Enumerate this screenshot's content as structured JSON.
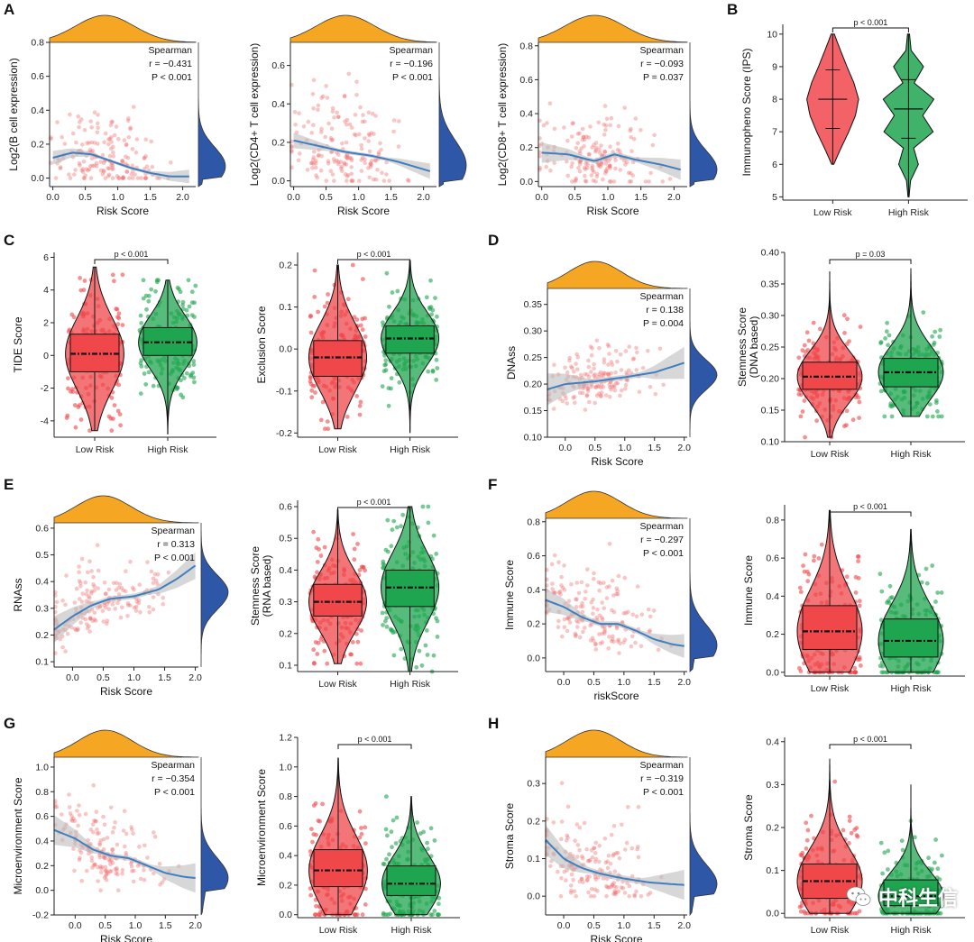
{
  "colors": {
    "low_risk": "#f0474b",
    "high_risk": "#1fa54f",
    "points": "#f06a6a",
    "smooth_line": "#3f7fbf",
    "confidence_band": "#bdbdbd",
    "top_density": "#f5a623",
    "right_density": "#2f57a8"
  },
  "panel_letters": [
    "A",
    "B",
    "C",
    "D",
    "E",
    "F",
    "G",
    "H"
  ],
  "watermark": {
    "icon": "wechat-icon",
    "text": "中科生信"
  },
  "chart_data": [
    {
      "id": "A1",
      "type": "scatter",
      "panel": "A",
      "xlabel": "Risk Score",
      "ylabel": "Log2(B cell expression)",
      "xlim": [
        -0.05,
        2.2
      ],
      "ylim": [
        -0.05,
        0.8
      ],
      "xticks": [
        "0.0",
        "0.5",
        "1.0",
        "1.5",
        "2.0"
      ],
      "xtick_values": [
        0,
        0.5,
        1,
        1.5,
        2
      ],
      "yticks": [
        "0.0",
        "0.2",
        "0.4",
        "0.6",
        "0.8"
      ],
      "ytick_values": [
        0,
        0.2,
        0.4,
        0.6,
        0.8
      ],
      "annotation": [
        "Spearman",
        "r = −0.431",
        "P < 0.001"
      ],
      "smooth": {
        "x": [
          0,
          0.3,
          0.6,
          0.9,
          1.2,
          1.5,
          1.8,
          2.1
        ],
        "y": [
          0.12,
          0.15,
          0.14,
          0.1,
          0.06,
          0.03,
          0.01,
          0.01
        ]
      },
      "band": [
        0.01,
        0.04
      ],
      "points": {
        "n": 170,
        "x_center": 0.8,
        "x_spread": 0.45,
        "y_scale": 0.14,
        "y_max": 0.72
      },
      "marginals": true
    },
    {
      "id": "A2",
      "type": "scatter",
      "panel": "A",
      "xlabel": "Risk Score",
      "ylabel": "Log2(CD4+ T cell expression)",
      "xlim": [
        -0.05,
        2.2
      ],
      "ylim": [
        -0.03,
        0.72
      ],
      "xticks": [
        "0.0",
        "0.5",
        "1.0",
        "1.5",
        "2.0"
      ],
      "xtick_values": [
        0,
        0.5,
        1,
        1.5,
        2
      ],
      "yticks": [
        "0.0",
        "0.2",
        "0.4",
        "0.6"
      ],
      "ytick_values": [
        0,
        0.2,
        0.4,
        0.6
      ],
      "annotation": [
        "Spearman",
        "r = −0.196",
        "P < 0.001"
      ],
      "smooth": {
        "x": [
          0,
          0.4,
          0.8,
          1.2,
          1.6,
          2.1
        ],
        "y": [
          0.21,
          0.18,
          0.15,
          0.13,
          0.1,
          0.05
        ]
      },
      "band": [
        0.01,
        0.04
      ],
      "points": {
        "n": 170,
        "x_center": 0.8,
        "x_spread": 0.45,
        "y_scale": 0.16,
        "y_max": 0.65
      },
      "marginals": true
    },
    {
      "id": "A3",
      "type": "scatter",
      "panel": "A",
      "xlabel": "Risk Score",
      "ylabel": "Log2(CD8+ T cell expression)",
      "xlim": [
        -0.05,
        2.2
      ],
      "ylim": [
        -0.03,
        0.82
      ],
      "xticks": [
        "0.0",
        "0.5",
        "1.0",
        "1.5",
        "2.0"
      ],
      "xtick_values": [
        0,
        0.5,
        1,
        1.5,
        2
      ],
      "yticks": [
        "0.0",
        "0.2",
        "0.4",
        "0.6",
        "0.8"
      ],
      "ytick_values": [
        0,
        0.2,
        0.4,
        0.6,
        0.8
      ],
      "annotation": [
        "Spearman",
        "r = −0.093",
        "P = 0.037"
      ],
      "smooth": {
        "x": [
          0,
          0.4,
          0.8,
          1.1,
          1.4,
          1.8,
          2.1
        ],
        "y": [
          0.17,
          0.16,
          0.12,
          0.16,
          0.13,
          0.1,
          0.07
        ]
      },
      "band": [
        0.015,
        0.06
      ],
      "points": {
        "n": 170,
        "x_center": 0.8,
        "x_spread": 0.45,
        "y_scale": 0.14,
        "y_max": 0.75
      },
      "marginals": true
    },
    {
      "id": "B",
      "type": "violin",
      "panel": "B",
      "ylabel": "Immunopheno Score (IPS)",
      "categories": [
        "Low Risk",
        "High Risk"
      ],
      "ylim": [
        4.9,
        10.3
      ],
      "yticks": [
        "5",
        "6",
        "7",
        "8",
        "9",
        "10"
      ],
      "ytick_values": [
        5,
        6,
        7,
        8,
        9,
        10
      ],
      "p_value": "p < 0.001",
      "violins": [
        {
          "group": "Low Risk",
          "range": [
            6,
            10
          ],
          "mean": 8,
          "sd": [
            7.1,
            8.9
          ],
          "profile_y": [
            6,
            6.5,
            7,
            7.5,
            8,
            8.5,
            9,
            9.5,
            10
          ],
          "profile_w": [
            0.04,
            0.32,
            0.62,
            0.88,
            1.0,
            0.82,
            0.55,
            0.3,
            0.06
          ]
        },
        {
          "group": "High Risk",
          "range": [
            5,
            10
          ],
          "mean": 7.7,
          "sd": [
            6.8,
            8.6
          ],
          "profile_y": [
            5,
            5.5,
            6,
            6.5,
            7,
            7.5,
            8,
            8.5,
            9,
            9.5,
            10
          ],
          "profile_w": [
            0.02,
            0.08,
            0.38,
            0.2,
            0.95,
            0.55,
            0.98,
            0.22,
            0.58,
            0.1,
            0.04
          ]
        }
      ]
    },
    {
      "id": "C1",
      "type": "box",
      "panel": "C",
      "ylabel": "TIDE Score",
      "categories": [
        "Low Risk",
        "High Risk"
      ],
      "ylim": [
        -5,
        6.3
      ],
      "yticks": [
        "-4",
        "-2",
        "0",
        "2",
        "4",
        "6"
      ],
      "ytick_values": [
        -4,
        -2,
        0,
        2,
        4,
        6
      ],
      "p_value": "p < 0.001",
      "boxes": [
        {
          "group": "Low Risk",
          "min": -4.6,
          "q1": -1.0,
          "median": 0.1,
          "q3": 1.3,
          "max": 5.4
        },
        {
          "group": "High Risk",
          "min": -4.8,
          "q1": 0.0,
          "median": 0.8,
          "q3": 1.7,
          "max": 4.6
        }
      ]
    },
    {
      "id": "C2",
      "type": "box",
      "panel": "C",
      "ylabel": "Exclusion Score",
      "categories": [
        "Low Risk",
        "High Risk"
      ],
      "ylim": [
        -0.21,
        0.23
      ],
      "yticks": [
        "-0.2",
        "-0.1",
        "0.0",
        "0.1",
        "0.2"
      ],
      "ytick_values": [
        -0.2,
        -0.1,
        0,
        0.1,
        0.2
      ],
      "p_value": "p < 0.001",
      "boxes": [
        {
          "group": "Low Risk",
          "min": -0.19,
          "q1": -0.065,
          "median": -0.02,
          "q3": 0.02,
          "max": 0.2
        },
        {
          "group": "High Risk",
          "min": -0.2,
          "q1": -0.01,
          "median": 0.025,
          "q3": 0.055,
          "max": 0.21
        }
      ]
    },
    {
      "id": "D1",
      "type": "scatter",
      "panel": "D",
      "xlabel": "Risk Score",
      "ylabel": "DNAss",
      "xlim": [
        -0.3,
        2.05
      ],
      "ylim": [
        0.1,
        0.38
      ],
      "xticks": [
        "0.0",
        "0.5",
        "1.0",
        "1.5",
        "2.0"
      ],
      "xtick_values": [
        0,
        0.5,
        1,
        1.5,
        2
      ],
      "yticks": [
        "0.10",
        "0.15",
        "0.20",
        "0.25",
        "0.30",
        "0.35"
      ],
      "ytick_values": [
        0.1,
        0.15,
        0.2,
        0.25,
        0.3,
        0.35
      ],
      "annotation": [
        "Spearman",
        "r = 0.138",
        "P = 0.004"
      ],
      "smooth": {
        "x": [
          -0.3,
          0,
          0.5,
          1.0,
          1.5,
          2.0
        ],
        "y": [
          0.19,
          0.2,
          0.205,
          0.213,
          0.222,
          0.24
        ]
      },
      "band": [
        0.005,
        0.03
      ],
      "points": {
        "n": 170,
        "x_center": 0.5,
        "x_spread": 0.45,
        "y_scale": 0.035,
        "y_base": 0.2,
        "y_max": 0.37
      },
      "marginals": true
    },
    {
      "id": "D2",
      "type": "box",
      "panel": "D",
      "ylabel": "Stemness Score (DNA based)",
      "categories": [
        "Low Risk",
        "High Risk"
      ],
      "ylim": [
        0.1,
        0.4
      ],
      "yticks": [
        "0.10",
        "0.15",
        "0.20",
        "0.25",
        "0.30",
        "0.35",
        "0.40"
      ],
      "ytick_values": [
        0.1,
        0.15,
        0.2,
        0.25,
        0.3,
        0.35,
        0.4
      ],
      "p_value": "p = 0.03",
      "boxes": [
        {
          "group": "Low Risk",
          "min": 0.107,
          "q1": 0.183,
          "median": 0.203,
          "q3": 0.226,
          "max": 0.37
        },
        {
          "group": "High Risk",
          "min": 0.14,
          "q1": 0.187,
          "median": 0.21,
          "q3": 0.232,
          "max": 0.375
        }
      ]
    },
    {
      "id": "E1",
      "type": "scatter",
      "panel": "E",
      "xlabel": "Risk Score",
      "ylabel": "RNAss",
      "xlim": [
        -0.3,
        2.05
      ],
      "ylim": [
        0.08,
        0.62
      ],
      "xticks": [
        "0.0",
        "0.5",
        "1.0",
        "1.5",
        "2.0"
      ],
      "xtick_values": [
        0,
        0.5,
        1,
        1.5,
        2
      ],
      "yticks": [
        "0.1",
        "0.2",
        "0.3",
        "0.4",
        "0.5",
        "0.6"
      ],
      "ytick_values": [
        0.1,
        0.2,
        0.3,
        0.4,
        0.5,
        0.6
      ],
      "annotation": [
        "Spearman",
        "r = 0.313",
        "P < 0.001"
      ],
      "smooth": {
        "x": [
          -0.3,
          0,
          0.3,
          0.6,
          1.0,
          1.4,
          1.7,
          2.0
        ],
        "y": [
          0.22,
          0.27,
          0.31,
          0.335,
          0.345,
          0.37,
          0.41,
          0.46
        ]
      },
      "band": [
        0.01,
        0.05
      ],
      "points": {
        "n": 170,
        "x_center": 0.5,
        "x_spread": 0.45,
        "y_scale": 0.08,
        "y_base": 0.32,
        "y_max": 0.6
      },
      "marginals": true
    },
    {
      "id": "E2",
      "type": "box",
      "panel": "E",
      "ylabel": "Stemness Score (RNA based)",
      "categories": [
        "Low Risk",
        "High Risk"
      ],
      "ylim": [
        0.08,
        0.62
      ],
      "yticks": [
        "0.1",
        "0.2",
        "0.3",
        "0.4",
        "0.5",
        "0.6"
      ],
      "ytick_values": [
        0.1,
        0.2,
        0.3,
        0.4,
        0.5,
        0.6
      ],
      "p_value": "p < 0.001",
      "boxes": [
        {
          "group": "Low Risk",
          "min": 0.105,
          "q1": 0.255,
          "median": 0.3,
          "q3": 0.355,
          "max": 0.59
        },
        {
          "group": "High Risk",
          "min": 0.08,
          "q1": 0.285,
          "median": 0.345,
          "q3": 0.4,
          "max": 0.6
        }
      ]
    },
    {
      "id": "F1",
      "type": "scatter",
      "panel": "F",
      "xlabel": "riskScore",
      "ylabel": "Immune Score",
      "xlim": [
        -0.3,
        2.05
      ],
      "ylim": [
        -0.08,
        0.82
      ],
      "xticks": [
        "0.0",
        "0.5",
        "1.0",
        "1.5",
        "2.0"
      ],
      "xtick_values": [
        0,
        0.5,
        1,
        1.5,
        2
      ],
      "yticks": [
        "0.0",
        "0.2",
        "0.4",
        "0.6",
        "0.8"
      ],
      "ytick_values": [
        0,
        0.2,
        0.4,
        0.6,
        0.8
      ],
      "annotation": [
        "Spearman",
        "r = −0.297",
        "P < 0.001"
      ],
      "smooth": {
        "x": [
          -0.3,
          0,
          0.3,
          0.6,
          0.9,
          1.2,
          1.5,
          1.8,
          2.0
        ],
        "y": [
          0.34,
          0.3,
          0.24,
          0.2,
          0.2,
          0.16,
          0.11,
          0.08,
          0.07
        ]
      },
      "band": [
        0.015,
        0.07
      ],
      "points": {
        "n": 170,
        "x_center": 0.5,
        "x_spread": 0.45,
        "y_scale": 0.15,
        "y_max": 0.72
      },
      "marginals": true
    },
    {
      "id": "F2",
      "type": "box",
      "panel": "F",
      "ylabel": "Immune Score",
      "categories": [
        "Low Risk",
        "High Risk"
      ],
      "ylim": [
        -0.02,
        0.88
      ],
      "yticks": [
        "0.0",
        "0.2",
        "0.4",
        "0.6",
        "0.8"
      ],
      "ytick_values": [
        0,
        0.2,
        0.4,
        0.6,
        0.8
      ],
      "p_value": "p < 0.001",
      "boxes": [
        {
          "group": "Low Risk",
          "min": 0.0,
          "q1": 0.12,
          "median": 0.215,
          "q3": 0.35,
          "max": 0.85
        },
        {
          "group": "High Risk",
          "min": 0.0,
          "q1": 0.08,
          "median": 0.165,
          "q3": 0.28,
          "max": 0.75
        }
      ]
    },
    {
      "id": "G1",
      "type": "scatter",
      "panel": "G",
      "xlabel": "Risk Score",
      "ylabel": "Microenvironment Score",
      "xlim": [
        -0.35,
        2.05
      ],
      "ylim": [
        -0.2,
        1.08
      ],
      "xticks": [
        "0.0",
        "0.5",
        "1.0",
        "1.5",
        "2.0"
      ],
      "xtick_values": [
        0,
        0.5,
        1,
        1.5,
        2
      ],
      "yticks": [
        "-0.2",
        "0.0",
        "0.2",
        "0.4",
        "0.6",
        "0.8",
        "1.0"
      ],
      "ytick_values": [
        -0.2,
        0,
        0.2,
        0.4,
        0.6,
        0.8,
        1.0
      ],
      "annotation": [
        "Spearman",
        "r = −0.354",
        "P < 0.001"
      ],
      "smooth": {
        "x": [
          -0.35,
          0,
          0.3,
          0.6,
          0.9,
          1.2,
          1.5,
          1.8,
          2.0
        ],
        "y": [
          0.49,
          0.42,
          0.33,
          0.28,
          0.26,
          0.2,
          0.14,
          0.11,
          0.1
        ]
      },
      "band": [
        0.02,
        0.12
      ],
      "points": {
        "n": 170,
        "x_center": 0.5,
        "x_spread": 0.45,
        "y_scale": 0.2,
        "y_max": 1.0
      },
      "marginals": true
    },
    {
      "id": "G2",
      "type": "box",
      "panel": "G",
      "ylabel": "Microenvironment Score",
      "categories": [
        "Low Risk",
        "High Risk"
      ],
      "ylim": [
        -0.02,
        1.2
      ],
      "yticks": [
        "0.0",
        "0.2",
        "0.4",
        "0.6",
        "0.8",
        "1.0",
        "1.2"
      ],
      "ytick_values": [
        0,
        0.2,
        0.4,
        0.6,
        0.8,
        1.0,
        1.2
      ],
      "p_value": "p < 0.001",
      "boxes": [
        {
          "group": "Low Risk",
          "min": 0.0,
          "q1": 0.19,
          "median": 0.3,
          "q3": 0.44,
          "max": 1.06
        },
        {
          "group": "High Risk",
          "min": 0.0,
          "q1": 0.13,
          "median": 0.21,
          "q3": 0.33,
          "max": 0.8
        }
      ]
    },
    {
      "id": "H1",
      "type": "scatter",
      "panel": "H",
      "xlabel": "Risk Score",
      "ylabel": "Stroma Score",
      "xlim": [
        -0.3,
        2.05
      ],
      "ylim": [
        -0.05,
        0.37
      ],
      "xticks": [
        "0.0",
        "0.5",
        "1.0",
        "1.5",
        "2.0"
      ],
      "xtick_values": [
        0,
        0.5,
        1,
        1.5,
        2
      ],
      "yticks": [
        "0.0",
        "0.1",
        "0.2",
        "0.3"
      ],
      "ytick_values": [
        0,
        0.1,
        0.2,
        0.3
      ],
      "annotation": [
        "Spearman",
        "r = −0.319",
        "P < 0.001"
      ],
      "smooth": {
        "x": [
          -0.3,
          0,
          0.3,
          0.6,
          1.0,
          1.4,
          1.8,
          2.0
        ],
        "y": [
          0.15,
          0.1,
          0.075,
          0.06,
          0.047,
          0.037,
          0.032,
          0.03
        ]
      },
      "band": [
        0.008,
        0.04
      ],
      "points": {
        "n": 170,
        "x_center": 0.5,
        "x_spread": 0.45,
        "y_scale": 0.065,
        "y_max": 0.33
      },
      "marginals": true
    },
    {
      "id": "H2",
      "type": "box",
      "panel": "H",
      "ylabel": "Stroma Score",
      "categories": [
        "Low Risk",
        "High Risk"
      ],
      "ylim": [
        -0.01,
        0.41
      ],
      "yticks": [
        "0.0",
        "0.1",
        "0.2",
        "0.3",
        "0.4"
      ],
      "ytick_values": [
        0,
        0.1,
        0.2,
        0.3,
        0.4
      ],
      "p_value": "p < 0.001",
      "boxes": [
        {
          "group": "Low Risk",
          "min": 0.0,
          "q1": 0.035,
          "median": 0.075,
          "q3": 0.115,
          "max": 0.36
        },
        {
          "group": "High Risk",
          "min": 0.0,
          "q1": 0.018,
          "median": 0.04,
          "q3": 0.078,
          "max": 0.3
        }
      ]
    }
  ]
}
